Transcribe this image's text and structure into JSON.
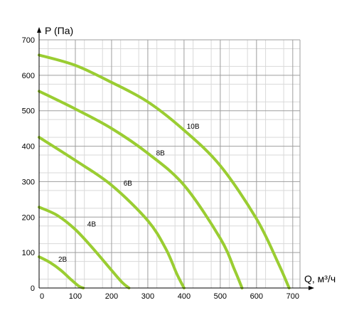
{
  "chart_data": {
    "type": "line",
    "ylabel": "P (Па)",
    "xlabel": "Q, м³/ч",
    "xlim": [
      0,
      720
    ],
    "ylim": [
      0,
      700
    ],
    "x_ticks": [
      0,
      100,
      200,
      300,
      400,
      500,
      600,
      700
    ],
    "y_ticks": [
      0,
      100,
      200,
      300,
      400,
      500,
      600,
      700
    ],
    "x_tick_labels": [
      "0",
      "100",
      "200",
      "300",
      "400",
      "500",
      "600",
      "700"
    ],
    "y_tick_labels": [
      "0",
      "100",
      "200",
      "300",
      "400",
      "500",
      "600",
      "700"
    ],
    "grid": "major and minor",
    "legend": "none",
    "series": [
      {
        "name": "2В",
        "x": [
          0,
          30,
          60,
          90,
          110,
          122
        ],
        "y": [
          88,
          72,
          50,
          22,
          5,
          0
        ]
      },
      {
        "name": "4В",
        "x": [
          0,
          50,
          100,
          150,
          200,
          230,
          248
        ],
        "y": [
          228,
          205,
          165,
          110,
          50,
          15,
          0
        ]
      },
      {
        "name": "6В",
        "x": [
          0,
          100,
          200,
          300,
          350,
          380,
          400
        ],
        "y": [
          425,
          360,
          290,
          190,
          110,
          40,
          0
        ]
      },
      {
        "name": "8В",
        "x": [
          0,
          100,
          200,
          300,
          400,
          500,
          540,
          560
        ],
        "y": [
          555,
          505,
          450,
          380,
          290,
          140,
          50,
          0
        ]
      },
      {
        "name": "10В",
        "x": [
          0,
          100,
          200,
          300,
          400,
          500,
          600,
          660,
          690
        ],
        "y": [
          657,
          628,
          580,
          525,
          445,
          345,
          195,
          70,
          0
        ]
      }
    ],
    "curve_labels": [
      {
        "text": "2В",
        "x": 65,
        "y": 80
      },
      {
        "text": "4В",
        "x": 145,
        "y": 180
      },
      {
        "text": "6В",
        "x": 245,
        "y": 295
      },
      {
        "text": "8В",
        "x": 335,
        "y": 380
      },
      {
        "text": "10В",
        "x": 425,
        "y": 455
      }
    ],
    "colors": {
      "curve": "#9acd32",
      "grid_major": "#9e9e9e",
      "grid_minor": "#d9d9d9",
      "axis": "#000000"
    }
  }
}
